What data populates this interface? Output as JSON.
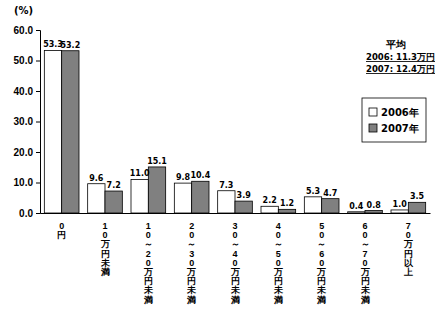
{
  "chart_data": {
    "type": "bar",
    "y_label": "(%)",
    "categories": [
      "0円",
      "10万円未満",
      "10～20万円未満",
      "20～30万円未満",
      "30～40万円未満",
      "40～50万円未満",
      "50～60万円未満",
      "60～70万円未満",
      "70万円以上"
    ],
    "series": [
      {
        "name": "2006年",
        "color": "#ffffff",
        "values": [
          53.3,
          9.6,
          11.0,
          9.8,
          7.3,
          2.2,
          5.3,
          0.4,
          1.0
        ],
        "value_labels": [
          "53.3",
          "9.6",
          "11.0",
          "9.8",
          "7.3",
          "2.2",
          "5.3",
          "0.4",
          "1.0"
        ]
      },
      {
        "name": "2007年",
        "color": "#808080",
        "values": [
          53.2,
          7.2,
          15.1,
          10.4,
          3.9,
          1.2,
          4.7,
          0.8,
          3.5
        ],
        "value_labels": [
          "53.2",
          "7.2",
          "15.1",
          "10.4",
          "3.9",
          "1.2",
          "4.7",
          "0.8",
          "3.5"
        ]
      }
    ],
    "ylim": [
      0,
      60
    ],
    "yticks": [
      {
        "value": 0,
        "label": "0.0"
      },
      {
        "value": 10,
        "label": "10.0"
      },
      {
        "value": 20,
        "label": "20.0"
      },
      {
        "value": 30,
        "label": "30.0"
      },
      {
        "value": 40,
        "label": "40.0"
      },
      {
        "value": 50,
        "label": "50.0"
      },
      {
        "value": 60,
        "label": "60.0"
      }
    ],
    "grid": false,
    "legend": "right",
    "data_labels": true,
    "annotations": [
      "平均",
      "2006: 11.3万円",
      "2007: 12.4万円"
    ]
  }
}
